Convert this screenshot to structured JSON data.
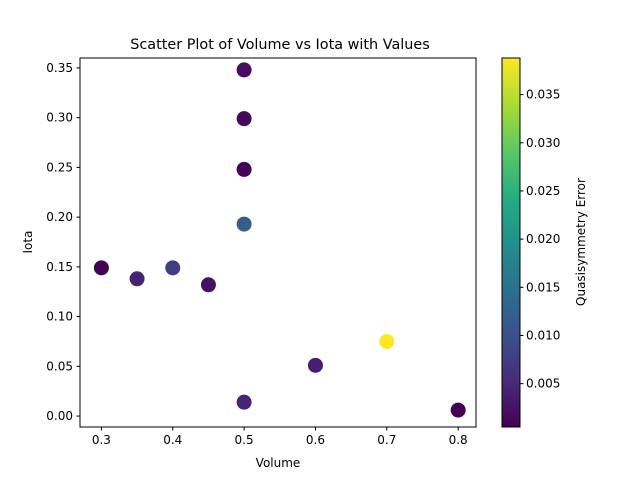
{
  "chart_data": {
    "type": "scatter",
    "title": "Scatter Plot of Volume vs Iota with Values",
    "xlabel": "Volume",
    "ylabel": "Iota",
    "xlim": [
      0.27,
      0.825
    ],
    "ylim": [
      -0.011,
      0.36
    ],
    "xticks": [
      "0.3",
      "0.4",
      "0.5",
      "0.6",
      "0.7",
      "0.8"
    ],
    "yticks": [
      "0.00",
      "0.05",
      "0.10",
      "0.15",
      "0.20",
      "0.25",
      "0.30",
      "0.35"
    ],
    "grid": false,
    "colormap": "viridis",
    "colorbar": {
      "label": "Quasisymmetry Error",
      "range": [
        0.0005,
        0.0388
      ],
      "ticks": [
        "0.005",
        "0.010",
        "0.015",
        "0.020",
        "0.025",
        "0.030",
        "0.035"
      ]
    },
    "points": [
      {
        "x": 0.3,
        "y": 0.149,
        "value": 0.0008
      },
      {
        "x": 0.35,
        "y": 0.138,
        "value": 0.0043
      },
      {
        "x": 0.4,
        "y": 0.149,
        "value": 0.0075
      },
      {
        "x": 0.45,
        "y": 0.132,
        "value": 0.0024
      },
      {
        "x": 0.5,
        "y": 0.348,
        "value": 0.002
      },
      {
        "x": 0.5,
        "y": 0.299,
        "value": 0.0013
      },
      {
        "x": 0.5,
        "y": 0.248,
        "value": 0.001
      },
      {
        "x": 0.5,
        "y": 0.193,
        "value": 0.0118
      },
      {
        "x": 0.5,
        "y": 0.014,
        "value": 0.0045
      },
      {
        "x": 0.6,
        "y": 0.051,
        "value": 0.004
      },
      {
        "x": 0.7,
        "y": 0.075,
        "value": 0.0388
      },
      {
        "x": 0.8,
        "y": 0.006,
        "value": 0.0006
      }
    ]
  }
}
